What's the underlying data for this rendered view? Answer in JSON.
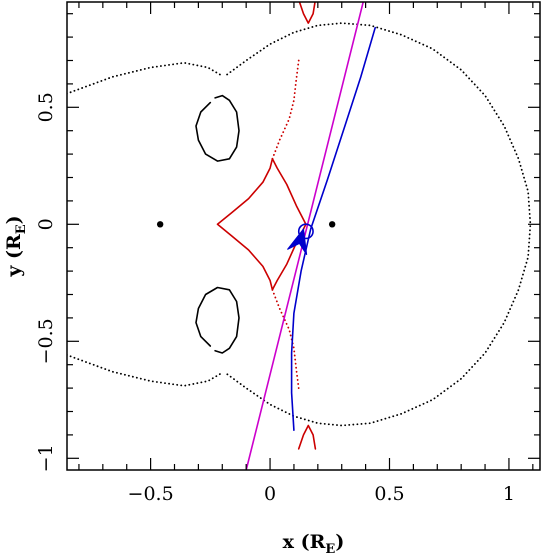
{
  "chart_data": {
    "type": "scatter",
    "xlabel": {
      "main": "x (R",
      "sub": "E",
      "close": ")"
    },
    "ylabel": {
      "main": "y (R",
      "sub": "E",
      "close": ")"
    },
    "xlim": [
      -0.85,
      1.13
    ],
    "ylim": [
      -1.05,
      0.95
    ],
    "x_ticks": [
      {
        "value": -0.5,
        "label": "−0.5"
      },
      {
        "value": 0,
        "label": "0"
      },
      {
        "value": 0.5,
        "label": "0.5"
      },
      {
        "value": 1,
        "label": "1"
      }
    ],
    "y_ticks": [
      {
        "value": -1,
        "label": "−1"
      },
      {
        "value": -0.5,
        "label": "−0.5"
      },
      {
        "value": 0,
        "label": "0"
      },
      {
        "value": 0.5,
        "label": "0.5"
      }
    ],
    "x_minor_step": 0.1,
    "y_minor_step": 0.1,
    "colors": {
      "critical_curve": "#000000",
      "caustic": "#cc0000",
      "straight_trajectory": "#cc00cc",
      "curved_trajectory": "#0000cc"
    },
    "lens_masses": [
      {
        "x": -0.46,
        "y": 0.0
      },
      {
        "x": 0.26,
        "y": 0.0
      }
    ],
    "source": {
      "x": 0.15,
      "y": -0.03,
      "r": 0.03
    },
    "series": [
      {
        "key": "critical_outer",
        "style": "dotted",
        "color": "#000000",
        "points": [
          [
            -0.21,
            0.64
          ],
          [
            -0.26,
            0.67
          ],
          [
            -0.36,
            0.69
          ],
          [
            -0.5,
            0.67
          ],
          [
            -0.66,
            0.63
          ],
          [
            -0.82,
            0.57
          ],
          [
            -0.95,
            0.52
          ]
        ],
        "points2": [
          [
            -0.18,
            0.64
          ],
          [
            -0.1,
            0.7
          ],
          [
            0.0,
            0.77
          ],
          [
            0.1,
            0.82
          ],
          [
            0.2,
            0.85
          ],
          [
            0.3,
            0.86
          ],
          [
            0.42,
            0.85
          ],
          [
            0.55,
            0.81
          ],
          [
            0.68,
            0.75
          ],
          [
            0.8,
            0.66
          ],
          [
            0.9,
            0.55
          ],
          [
            0.98,
            0.42
          ],
          [
            1.04,
            0.28
          ],
          [
            1.08,
            0.14
          ],
          [
            1.09,
            0.0
          ],
          [
            1.08,
            -0.14
          ],
          [
            1.04,
            -0.28
          ],
          [
            0.98,
            -0.42
          ],
          [
            0.9,
            -0.55
          ],
          [
            0.8,
            -0.66
          ],
          [
            0.68,
            -0.75
          ],
          [
            0.55,
            -0.81
          ],
          [
            0.42,
            -0.85
          ],
          [
            0.3,
            -0.86
          ],
          [
            0.2,
            -0.85
          ],
          [
            0.1,
            -0.82
          ],
          [
            0.0,
            -0.77
          ],
          [
            -0.1,
            -0.7
          ],
          [
            -0.18,
            -0.64
          ]
        ],
        "points3": [
          [
            -0.21,
            -0.64
          ],
          [
            -0.26,
            -0.67
          ],
          [
            -0.36,
            -0.69
          ],
          [
            -0.5,
            -0.67
          ],
          [
            -0.66,
            -0.63
          ],
          [
            -0.82,
            -0.57
          ],
          [
            -0.95,
            -0.52
          ]
        ]
      },
      {
        "key": "critical_inner_upper",
        "style": "solid",
        "color": "#000000",
        "points": [
          [
            -0.23,
            0.54
          ],
          [
            -0.2,
            0.55
          ],
          [
            -0.17,
            0.53
          ],
          [
            -0.14,
            0.48
          ],
          [
            -0.13,
            0.4
          ],
          [
            -0.14,
            0.33
          ],
          [
            -0.17,
            0.28
          ],
          [
            -0.22,
            0.27
          ],
          [
            -0.27,
            0.3
          ],
          [
            -0.3,
            0.36
          ],
          [
            -0.31,
            0.42
          ],
          [
            -0.29,
            0.48
          ],
          [
            -0.25,
            0.52
          ]
        ]
      },
      {
        "key": "critical_inner_lower",
        "style": "solid",
        "color": "#000000",
        "points": [
          [
            -0.23,
            -0.54
          ],
          [
            -0.2,
            -0.55
          ],
          [
            -0.17,
            -0.53
          ],
          [
            -0.14,
            -0.48
          ],
          [
            -0.13,
            -0.4
          ],
          [
            -0.14,
            -0.33
          ],
          [
            -0.17,
            -0.28
          ],
          [
            -0.22,
            -0.27
          ],
          [
            -0.27,
            -0.3
          ],
          [
            -0.3,
            -0.36
          ],
          [
            -0.31,
            -0.42
          ],
          [
            -0.29,
            -0.48
          ],
          [
            -0.25,
            -0.52
          ]
        ]
      },
      {
        "key": "caustic_central",
        "style": "solid",
        "color": "#cc0000",
        "points": [
          [
            -0.22,
            0.0
          ],
          [
            -0.16,
            0.05
          ],
          [
            -0.09,
            0.11
          ],
          [
            -0.03,
            0.18
          ],
          [
            0.0,
            0.24
          ],
          [
            0.01,
            0.28
          ],
          [
            0.03,
            0.24
          ],
          [
            0.07,
            0.17
          ],
          [
            0.11,
            0.08
          ],
          [
            0.15,
            0.0
          ],
          [
            0.11,
            -0.08
          ],
          [
            0.07,
            -0.17
          ],
          [
            0.03,
            -0.24
          ],
          [
            0.01,
            -0.28
          ],
          [
            0.0,
            -0.24
          ],
          [
            -0.03,
            -0.18
          ],
          [
            -0.09,
            -0.11
          ],
          [
            -0.16,
            -0.05
          ],
          [
            -0.22,
            0.0
          ]
        ]
      },
      {
        "key": "caustic_upper",
        "style": "dotted",
        "color": "#cc0000",
        "points": [
          [
            0.01,
            0.28
          ],
          [
            0.04,
            0.36
          ],
          [
            0.08,
            0.45
          ],
          [
            0.1,
            0.53
          ],
          [
            0.11,
            0.62
          ],
          [
            0.12,
            0.7
          ]
        ]
      },
      {
        "key": "caustic_upper_cusp",
        "style": "solid",
        "color": "#cc0000",
        "points": [
          [
            0.12,
            0.96
          ],
          [
            0.14,
            0.9
          ],
          [
            0.16,
            0.86
          ],
          [
            0.18,
            0.9
          ],
          [
            0.19,
            0.96
          ]
        ]
      },
      {
        "key": "caustic_lower",
        "style": "dotted",
        "color": "#cc0000",
        "points": [
          [
            0.01,
            -0.28
          ],
          [
            0.04,
            -0.36
          ],
          [
            0.08,
            -0.45
          ],
          [
            0.1,
            -0.53
          ],
          [
            0.11,
            -0.62
          ],
          [
            0.12,
            -0.7
          ]
        ]
      },
      {
        "key": "caustic_lower_cusp",
        "style": "solid",
        "color": "#cc0000",
        "points": [
          [
            0.12,
            -0.96
          ],
          [
            0.14,
            -0.9
          ],
          [
            0.16,
            -0.86
          ],
          [
            0.18,
            -0.9
          ],
          [
            0.19,
            -0.96
          ]
        ]
      },
      {
        "key": "straight_trajectory",
        "style": "solid",
        "color": "#cc00cc",
        "points": [
          [
            -0.1,
            -1.05
          ],
          [
            0.39,
            0.95
          ]
        ]
      },
      {
        "key": "curved_trajectory",
        "style": "solid",
        "color": "#0000cc",
        "points": [
          [
            0.44,
            0.84
          ],
          [
            0.38,
            0.63
          ],
          [
            0.31,
            0.41
          ],
          [
            0.24,
            0.19
          ],
          [
            0.17,
            -0.02
          ],
          [
            0.13,
            -0.2
          ],
          [
            0.1,
            -0.38
          ],
          [
            0.09,
            -0.55
          ],
          [
            0.09,
            -0.72
          ],
          [
            0.1,
            -0.88
          ]
        ]
      }
    ],
    "arrow": {
      "tip": [
        0.14,
        -0.02
      ],
      "tail": [
        0.11,
        -0.13
      ]
    }
  }
}
